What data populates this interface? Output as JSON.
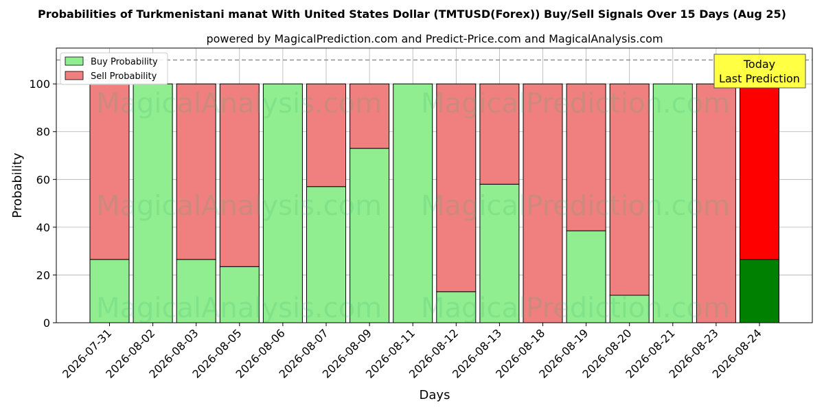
{
  "chart_data": {
    "type": "bar",
    "stacked": true,
    "title": "Probabilities of Turkmenistani manat With United States Dollar (TMTUSD(Forex)) Buy/Sell Signals Over 15 Days (Aug 25)",
    "subtitle": "powered by MagicalPrediction.com and Predict-Price.com and MagicalAnalysis.com",
    "xlabel": "Days",
    "ylabel": "Probability",
    "ylim": [
      0,
      115
    ],
    "yticks": [
      0,
      20,
      40,
      60,
      80,
      100
    ],
    "reference_line": 110,
    "grid": true,
    "legend_position": "top-left",
    "categories": [
      "2026-07-31",
      "2026-08-02",
      "2026-08-03",
      "2026-08-05",
      "2026-08-06",
      "2026-08-07",
      "2026-08-09",
      "2026-08-11",
      "2026-08-12",
      "2026-08-13",
      "2026-08-18",
      "2026-08-19",
      "2026-08-20",
      "2026-08-21",
      "2026-08-23",
      "2026-08-24"
    ],
    "series": [
      {
        "name": "Buy Probability",
        "color": "#90ee90",
        "values": [
          26.5,
          100,
          26.5,
          23.5,
          100,
          57,
          73,
          100,
          13,
          58,
          0,
          38.5,
          11.5,
          100,
          0,
          26.5
        ]
      },
      {
        "name": "Sell Probability",
        "color": "#f08080",
        "values": [
          73.5,
          0,
          73.5,
          76.5,
          0,
          43,
          27,
          0,
          87,
          42,
          100,
          61.5,
          88.5,
          0,
          100,
          73.5
        ]
      }
    ],
    "highlight": {
      "index": 15,
      "buy_color": "#008000",
      "sell_color": "#ff0000"
    },
    "annotation": {
      "lines": [
        "Today",
        "Last Prediction"
      ],
      "background": "#ffff44"
    },
    "watermarks": [
      "MagicalAnalysis.com",
      "MagicalPrediction.com"
    ]
  }
}
